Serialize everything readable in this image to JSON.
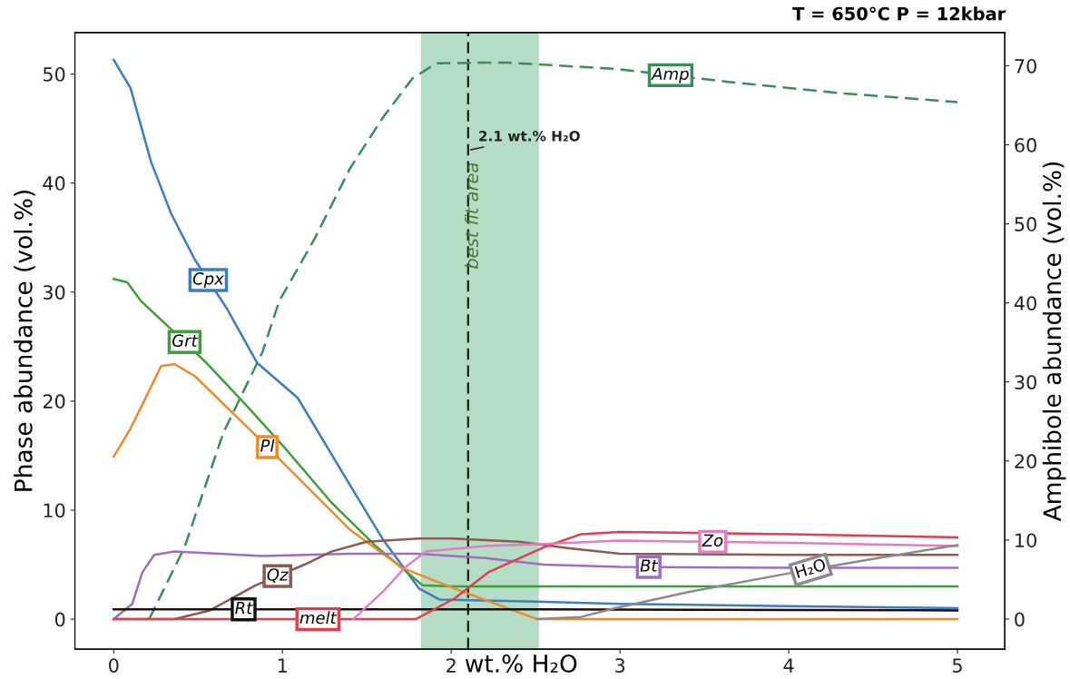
{
  "chart_data": {
    "type": "line",
    "title": "T = 650°C P = 12kbar",
    "xlabel": "wt.% H₂O",
    "ylabel": "Phase abundance (vol.%)",
    "y2label": "Amphibole abundance (vol.%)",
    "xlim": [
      -0.23,
      5.28
    ],
    "xticks": [
      0,
      1,
      2,
      3,
      4,
      5
    ],
    "ylim": [
      -2.75,
      53.8
    ],
    "yticks": [
      0,
      10,
      20,
      30,
      40,
      50
    ],
    "y2lim": [
      -3.8,
      74.2
    ],
    "y2ticks": [
      0,
      10,
      20,
      30,
      40,
      50,
      60,
      70
    ],
    "grid": false,
    "legend": false,
    "marker": "none",
    "bands": [
      {
        "axis": "x",
        "from": 1.82,
        "to": 2.52,
        "label": "best fit area",
        "color": "#b5dcc5"
      }
    ],
    "ref_lines": [
      {
        "axis": "x",
        "value": 2.1,
        "label": "2.1 wt.% H₂O",
        "color": "#111111",
        "line_style": "dashed"
      }
    ],
    "series": [
      {
        "name": "Cpx",
        "color": "#3a7ec1",
        "x": [
          0,
          0.1,
          0.22,
          0.34,
          0.48,
          0.67,
          0.85,
          1.09,
          1.4,
          1.6,
          1.81,
          1.93,
          2.5,
          3,
          4,
          5
        ],
        "values": [
          51.3,
          48.7,
          42,
          37.2,
          33,
          28.5,
          23.5,
          20.3,
          12.3,
          7.2,
          2.8,
          1.8,
          1.6,
          1.4,
          1.2,
          1.0
        ]
      },
      {
        "name": "Grt",
        "color": "#3aa03a",
        "x": [
          0,
          0.08,
          0.16,
          0.34,
          0.55,
          0.78,
          1.02,
          1.29,
          1.56,
          1.83,
          2.0,
          3,
          4,
          5
        ],
        "values": [
          31.2,
          30.9,
          29.2,
          26.6,
          23.5,
          19.7,
          15.6,
          10.7,
          6.6,
          3.1,
          3.0,
          3.0,
          3.0,
          3.0
        ]
      },
      {
        "name": "Pl",
        "color": "#f0892a",
        "x": [
          0,
          0.1,
          0.18,
          0.28,
          0.36,
          0.48,
          0.78,
          1.09,
          1.4,
          1.71,
          2.02,
          2.51,
          3,
          4,
          5
        ],
        "values": [
          14.9,
          17.5,
          20,
          23.2,
          23.4,
          22.3,
          17.8,
          13,
          8.2,
          4.7,
          2.8,
          0,
          0,
          0,
          0
        ]
      },
      {
        "name": "Bt",
        "color": "#9b6fc0",
        "x": [
          0,
          0.11,
          0.17,
          0.24,
          0.36,
          0.88,
          1.4,
          1.8,
          2.2,
          2.55,
          3,
          4,
          5
        ],
        "values": [
          0,
          1.4,
          4.3,
          5.9,
          6.2,
          5.8,
          6.0,
          6.0,
          5.6,
          5.0,
          4.8,
          4.7,
          4.7
        ]
      },
      {
        "name": "Qz",
        "color": "#8c5a50",
        "x": [
          0,
          0.36,
          0.57,
          0.84,
          1.13,
          1.29,
          1.5,
          1.81,
          2.0,
          2.4,
          2.7,
          3,
          4,
          5
        ],
        "values": [
          0,
          0,
          0.8,
          3.1,
          5.0,
          6.2,
          7.1,
          7.4,
          7.4,
          7.1,
          6.5,
          6.0,
          5.9,
          5.9
        ]
      },
      {
        "name": "Rt",
        "color": "#111111",
        "x": [
          0,
          2.5,
          5
        ],
        "values": [
          0.9,
          0.9,
          0.8
        ]
      },
      {
        "name": "melt",
        "color": "#e0404e",
        "x": [
          0,
          1.79,
          2.02,
          2.22,
          2.55,
          2.77,
          3.0,
          4,
          5
        ],
        "values": [
          0,
          0,
          1.9,
          4.3,
          6.6,
          7.8,
          8.0,
          7.8,
          7.5
        ]
      },
      {
        "name": "Zo",
        "color": "#e07fc0",
        "x": [
          1.42,
          1.6,
          1.73,
          1.85,
          2.2,
          2.55,
          3,
          4,
          5
        ],
        "values": [
          0,
          2.6,
          4.8,
          6.2,
          6.7,
          6.9,
          7.2,
          7.0,
          6.7
        ]
      },
      {
        "name": "H₂O",
        "color": "#8a8a8a",
        "x": [
          2.51,
          2.77,
          2.97,
          3.41,
          4.0,
          4.49,
          5
        ],
        "values": [
          0,
          0.2,
          1.0,
          2.5,
          4.2,
          5.5,
          6.8
        ]
      },
      {
        "name": "Amp",
        "color": "#3d8a5c",
        "axis": "y2",
        "line_style": "dashed",
        "x": [
          0.21,
          0.42,
          0.65,
          0.88,
          0.98,
          1.19,
          1.4,
          1.6,
          1.77,
          1.91,
          2.2,
          2.34,
          2.98,
          3.63,
          4.27,
          5.0
        ],
        "values": [
          0,
          9.1,
          23.6,
          33.7,
          40.2,
          48.1,
          57,
          63.6,
          68.4,
          70.3,
          70.4,
          70.4,
          69.6,
          68,
          66.6,
          65.4
        ]
      }
    ]
  }
}
